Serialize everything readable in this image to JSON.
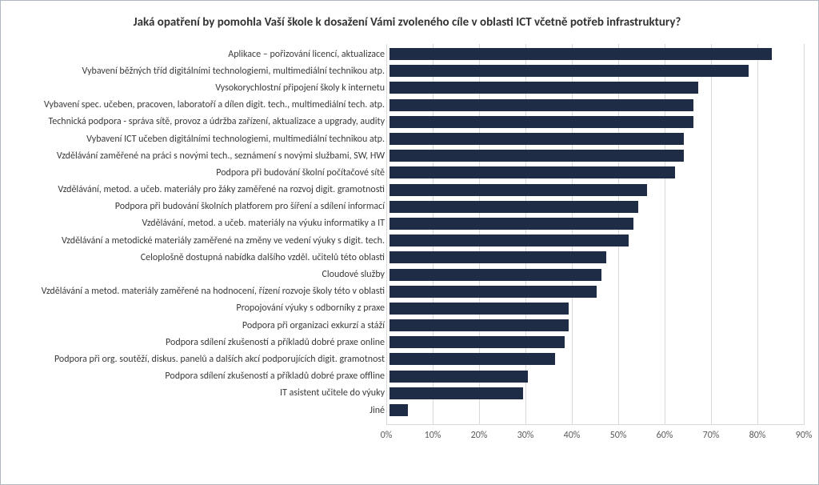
{
  "chart": {
    "type": "bar-horizontal",
    "title": "Jaká opatření by pomohla Vaší škole k dosažení Vámi zvoleného cíle v oblasti ICT včetně potřeb infrastruktury?",
    "title_fontsize": 15,
    "title_fontweight": 700,
    "background_color": "#ffffff",
    "border_color": "#b0b7c0",
    "bar_color": "#1f2c46",
    "grid_color": "#d9d9d9",
    "label_fontsize": 12,
    "label_color": "#3a3a3a",
    "tick_fontsize": 12,
    "tick_color": "#5a5a5a",
    "x_axis": {
      "min": 0,
      "max": 90,
      "ticks": [
        0,
        10,
        20,
        30,
        40,
        50,
        60,
        70,
        80,
        90
      ],
      "tick_labels": [
        "0%",
        "10%",
        "20%",
        "30%",
        "40%",
        "50%",
        "60%",
        "70%",
        "80%",
        "90%"
      ]
    },
    "categories": [
      "Aplikace – pořizování licencí, aktualizace",
      "Vybavení běžných tříd digitálními technologiemi, multimediální technikou atp.",
      "Vysokorychlostní připojení školy k internetu",
      "Vybavení spec. učeben, pracoven, laboratoří a dílen digit. tech., multimediální tech. atp.",
      "Technická podpora - správa sítě, provoz a údržba zařízení, aktualizace a upgrady, audity",
      "Vybavení ICT učeben digitálními technologiemi, multimediální technikou atp.",
      "Vzdělávání zaměřené na práci s novými tech., seznámení s novými službami, SW, HW",
      "Podpora při budování školní počítačové sítě",
      "Vzdělávání, metod. a učeb. materiály pro žáky zaměřené na rozvoj digit. gramotnosti",
      "Podpora při budování školních platforem pro šíření a sdílení informací",
      "Vzdělávání, metod. a učeb. materiály na výuku informatiky a IT",
      "Vzdělávání a metodické materiály zaměřené na změny ve vedení výuky s digit. tech.",
      "Celoplošně dostupná nabídka dalšího vzděl. učitelů této oblasti",
      "Cloudové služby",
      "Vzdělávání a metod. materiály zaměřené na hodnocení, řízení rozvoje školy této v oblasti",
      "Propojování výuky s odborníky z praxe",
      "Podpora při organizaci exkurzí a stáží",
      "Podpora sdílení zkušeností a příkladů dobré praxe online",
      "Podpora při org. soutěží, diskus. panelů a dalších akcí podporujících digit. gramotnost",
      "Podpora sdílení zkušeností a příkladů dobré praxe offline",
      "IT asistent učitele do výuky",
      "Jiné"
    ],
    "values": [
      83,
      78,
      67,
      66,
      66,
      64,
      64,
      62,
      56,
      54,
      53,
      52,
      47,
      46,
      45,
      39,
      39,
      38,
      36,
      30,
      29,
      4
    ]
  }
}
